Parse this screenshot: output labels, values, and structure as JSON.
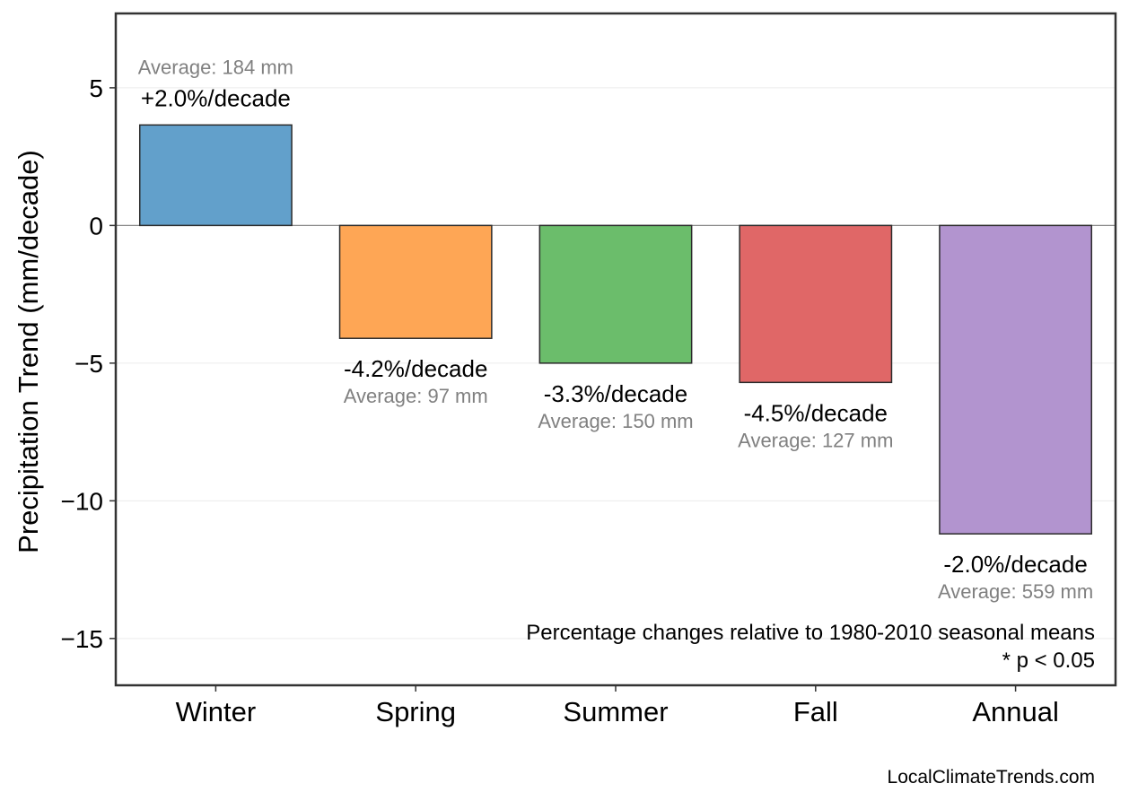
{
  "chart_data": {
    "type": "bar",
    "title": "",
    "xlabel": "",
    "ylabel": "Precipitation Trend (mm/decade)",
    "ylim": [
      -16.7,
      7.7
    ],
    "yticks": [
      5,
      0,
      -5,
      -10,
      -15
    ],
    "ytick_labels": [
      "5",
      "0",
      "−5",
      "−10",
      "−15"
    ],
    "categories": [
      "Winter",
      "Spring",
      "Summer",
      "Fall",
      "Annual"
    ],
    "values": [
      3.65,
      -4.1,
      -5.0,
      -5.7,
      -11.2
    ],
    "percent_labels": [
      "+2.0%/decade",
      "-4.2%/decade",
      "-3.3%/decade",
      "-4.5%/decade",
      "-2.0%/decade"
    ],
    "average_labels": [
      "Average: 184 mm",
      "Average: 97 mm",
      "Average: 150 mm",
      "Average: 127 mm",
      "Average: 559 mm"
    ],
    "colors": [
      "#62a0cb",
      "#fea655",
      "#6bbd6b",
      "#e06767",
      "#b294cf"
    ],
    "grid": true,
    "legend": "none"
  },
  "annotations": {
    "note_line1": "Percentage changes relative to 1980-2010 seasonal means",
    "note_line2": "* p < 0.05"
  },
  "footer": {
    "source": "LocalClimateTrends.com"
  }
}
